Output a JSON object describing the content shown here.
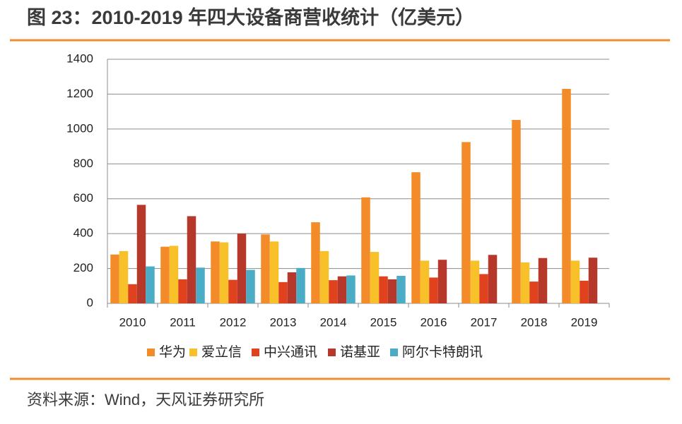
{
  "chart_data": {
    "type": "bar",
    "title": "图 23：2010-2019 年四大设备商营收统计（亿美元）",
    "source": "资料来源：Wind，天风证券研究所",
    "categories": [
      "2010",
      "2011",
      "2012",
      "2013",
      "2014",
      "2015",
      "2016",
      "2017",
      "2018",
      "2019"
    ],
    "series": [
      {
        "name": "华为",
        "color": "#f28b28",
        "values": [
          280,
          325,
          355,
          395,
          465,
          608,
          752,
          925,
          1052,
          1230
        ]
      },
      {
        "name": "爱立信",
        "color": "#f8c12a",
        "values": [
          300,
          330,
          350,
          355,
          300,
          295,
          245,
          245,
          235,
          245
        ]
      },
      {
        "name": "中兴通讯",
        "color": "#e0421d",
        "values": [
          110,
          138,
          135,
          122,
          133,
          155,
          148,
          168,
          125,
          130
        ]
      },
      {
        "name": "诺基亚",
        "color": "#b5382a",
        "values": [
          565,
          500,
          400,
          178,
          155,
          138,
          250,
          278,
          260,
          262
        ]
      },
      {
        "name": "阿尔卡特朗讯",
        "color": "#4bacc6",
        "values": [
          212,
          205,
          192,
          203,
          160,
          158,
          null,
          null,
          null,
          null
        ]
      }
    ],
    "ylim": [
      0,
      1400
    ],
    "yticks": [
      0,
      200,
      400,
      600,
      800,
      1000,
      1200,
      1400
    ],
    "grid": true,
    "legend": "bottom"
  }
}
